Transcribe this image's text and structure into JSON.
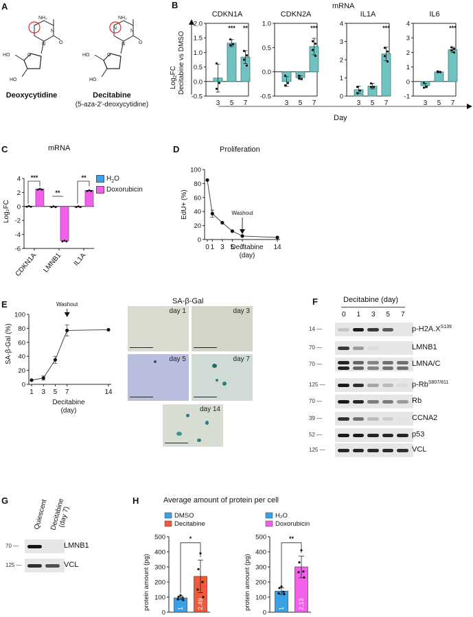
{
  "panels": {
    "A": {
      "letter": "A",
      "molecules": [
        {
          "name": "Deoxycytidine",
          "subtitle": "",
          "ring_atoms": [
            "NH2",
            "N",
            "O",
            "N"
          ],
          "sugar_labels": [
            "HO",
            "O",
            "HO"
          ],
          "highlight": "C5 (circled)"
        },
        {
          "name": "Decitabine",
          "subtitle": "(5-aza-2'-deoxycytidine)",
          "ring_atoms": [
            "NH2",
            "N",
            "O",
            "N",
            "N"
          ],
          "sugar_labels": [
            "HO",
            "O",
            "HO"
          ],
          "highlight": "N5 (circled)"
        }
      ],
      "highlight_color": "#d22b2b"
    },
    "B": {
      "letter": "B",
      "title": "mRNA",
      "ylabel_line1": "Log2FC",
      "ylabel_line2": "Decitabine vs DMSO",
      "xlabel": "Day",
      "bar_color": "#6fc2bf"
    },
    "C": {
      "letter": "C",
      "title": "mRNA",
      "ylabel": "Log2FC",
      "legend": [
        {
          "label": "H2O",
          "color": "#3aa0e8"
        },
        {
          "label": "Doxorubicin",
          "color": "#f060e8"
        }
      ]
    },
    "D": {
      "letter": "D",
      "title": "Proliferation",
      "ylabel": "EdU+ (%)",
      "xlabel_line1": "Decitabine",
      "xlabel_line2": "(day)",
      "annotation": "Washout"
    },
    "E": {
      "letter": "E",
      "ylabel": "SA-β-Gal (%)",
      "xlabel_line1": "Decitabine",
      "xlabel_line2": "(day)",
      "annotation": "Washout",
      "micrographs_title": "SA-β-Gal",
      "micrographs": [
        {
          "label": "day 1",
          "bg": "#d9dccf"
        },
        {
          "label": "day 3",
          "bg": "#d3d6c7"
        },
        {
          "label": "day 5",
          "bg": "#b9bede"
        },
        {
          "label": "day 7",
          "bg": "#cfdbd4"
        },
        {
          "label": "day 14",
          "bg": "#d7ddd2"
        }
      ]
    },
    "F": {
      "letter": "F",
      "header": "Decitabine (day)",
      "lanes": [
        "0",
        "1",
        "3",
        "5",
        "7"
      ],
      "blots": [
        {
          "label": "p-H2A.X",
          "sup": "S139",
          "mw": "14",
          "intensities": [
            0.15,
            0.95,
            0.8,
            0.65,
            0.0
          ]
        },
        {
          "label": "LMNB1",
          "sup": "",
          "mw": "70",
          "intensities": [
            0.8,
            0.35,
            0.05,
            0.0,
            0.0
          ]
        },
        {
          "label": "LMNA/C",
          "sup": "",
          "mw": "70",
          "intensities": [
            0.9,
            0.6,
            0.45,
            0.55,
            0.55
          ]
        },
        {
          "label": "p-Rb",
          "sup": "S807/811",
          "mw": "125",
          "intensities": [
            0.95,
            0.85,
            0.3,
            0.2,
            0.05
          ]
        },
        {
          "label": "Rb",
          "sup": "",
          "mw": "70",
          "intensities": [
            0.95,
            0.9,
            0.5,
            0.5,
            0.35
          ]
        },
        {
          "label": "CCNA2",
          "sup": "",
          "mw": "39",
          "intensities": [
            0.85,
            0.55,
            0.2,
            0.12,
            0.02
          ]
        },
        {
          "label": "p53",
          "sup": "",
          "mw": "52",
          "intensities": [
            0.95,
            0.95,
            0.9,
            0.9,
            0.9
          ]
        },
        {
          "label": "VCL",
          "sup": "",
          "mw": "125",
          "intensities": [
            0.9,
            0.9,
            0.88,
            0.88,
            0.85
          ]
        }
      ]
    },
    "G": {
      "letter": "G",
      "lanes": [
        "Quiescent",
        "Decitabine (day 7)"
      ],
      "blots": [
        {
          "label": "LMNB1",
          "mw": "70",
          "intensities": [
            0.98,
            0.0
          ]
        },
        {
          "label": "VCL",
          "mw": "125",
          "intensities": [
            0.85,
            0.7
          ]
        }
      ]
    },
    "H": {
      "letter": "H",
      "title": "Average amount of protein per cell",
      "ylabel": "protein amount (pg)"
    }
  },
  "chart_data": [
    {
      "id": "B-CDKN1A",
      "type": "bar",
      "title": "CDKN1A",
      "categories": [
        "3",
        "5",
        "7"
      ],
      "values": [
        0.12,
        1.32,
        0.84
      ],
      "errors": [
        0.48,
        0.12,
        0.22
      ],
      "points": [
        [
          0.62,
          -0.05,
          -0.25
        ],
        [
          1.45,
          1.28,
          1.25
        ],
        [
          1.05,
          0.9,
          0.75,
          0.55
        ]
      ],
      "significance": [
        "",
        "***",
        "**"
      ],
      "ylim": [
        -0.5,
        2.0
      ],
      "yticks": [
        "-0.5",
        "0.0",
        "0.5",
        "1.0",
        "1.5",
        "2.0"
      ],
      "xlabel": "Day",
      "ylabel": "Log2FC Decitabine vs DMSO"
    },
    {
      "id": "B-CDKN2A",
      "type": "bar",
      "title": "CDKN2A",
      "categories": [
        "3",
        "5",
        "7"
      ],
      "values": [
        -0.2,
        -0.12,
        0.52
      ],
      "errors": [
        0.1,
        0.04,
        0.17
      ],
      "points": [
        [
          -0.08,
          -0.23,
          -0.28
        ],
        [
          -0.08,
          -0.15,
          -0.13
        ],
        [
          0.63,
          0.58,
          0.45,
          0.33
        ]
      ],
      "significance": [
        "",
        "",
        "***"
      ],
      "ylim": [
        -0.5,
        1.0
      ],
      "yticks": [
        "-0.5",
        "0.0",
        "0.5",
        "1.0"
      ],
      "xlabel": "Day"
    },
    {
      "id": "B-IL1A",
      "type": "bar",
      "title": "IL1A",
      "categories": [
        "3",
        "5",
        "7"
      ],
      "values": [
        0.35,
        0.55,
        2.32
      ],
      "errors": [
        0.2,
        0.15,
        0.37
      ],
      "points": [
        [
          0.5,
          0.3,
          0.15
        ],
        [
          0.7,
          0.5,
          0.5
        ],
        [
          2.65,
          2.45,
          2.2,
          1.9
        ]
      ],
      "significance": [
        "",
        "",
        "***"
      ],
      "ylim": [
        0,
        4
      ],
      "yticks": [
        "0",
        "1",
        "2",
        "3",
        "4"
      ],
      "xlabel": "Day"
    },
    {
      "id": "B-IL6",
      "type": "bar",
      "title": "IL6",
      "categories": [
        "3",
        "5",
        "7"
      ],
      "values": [
        -0.28,
        0.66,
        2.18
      ],
      "errors": [
        0.15,
        0.05,
        0.18
      ],
      "points": [
        [
          -0.1,
          -0.35,
          -0.42
        ],
        [
          0.7,
          0.65,
          0.65
        ],
        [
          2.35,
          2.25,
          2.15,
          2.0
        ]
      ],
      "significance": [
        "",
        "",
        "***"
      ],
      "ylim": [
        -1,
        4
      ],
      "yticks": [
        "-1",
        "0",
        "1",
        "2",
        "3",
        "4"
      ],
      "xlabel": "Day"
    },
    {
      "id": "C",
      "type": "bar",
      "title": "mRNA",
      "categories": [
        "CDKN1A",
        "LMNB1",
        "IL1A"
      ],
      "series": [
        {
          "name": "H2O",
          "values": [
            0.05,
            0.0,
            0.0
          ],
          "color": "#3aa0e8"
        },
        {
          "name": "Doxorubicin",
          "values": [
            2.5,
            -4.9,
            2.3
          ],
          "color": "#f060e8"
        }
      ],
      "significance": [
        "***",
        "**",
        "**"
      ],
      "ylim": [
        -6,
        4
      ],
      "yticks": [
        "-6",
        "-4",
        "-2",
        "0",
        "2",
        "4"
      ],
      "ylabel": "Log2FC"
    },
    {
      "id": "D",
      "type": "line",
      "title": "Proliferation",
      "x": [
        0,
        1,
        3,
        5,
        7,
        14
      ],
      "y": [
        85,
        37,
        24,
        12,
        5,
        3
      ],
      "errors": [
        0,
        5,
        1,
        1,
        1,
        1
      ],
      "xticks": [
        "0",
        "1",
        "3",
        "5",
        "7",
        "14"
      ],
      "yticks": [
        "0",
        "20",
        "40",
        "60",
        "80",
        "100"
      ],
      "ylim": [
        0,
        100
      ],
      "xlabel": "Decitabine (day)",
      "ylabel": "EdU+ (%)",
      "annotations": [
        {
          "text": "Washout",
          "x": 7
        }
      ]
    },
    {
      "id": "E",
      "type": "line",
      "title": "",
      "x": [
        1,
        3,
        5,
        7,
        14
      ],
      "y": [
        6,
        9,
        35,
        77,
        78
      ],
      "errors": [
        1,
        3,
        5,
        8,
        1
      ],
      "xticks": [
        "1",
        "3",
        "5",
        "7",
        "14"
      ],
      "yticks": [
        "0",
        "20",
        "40",
        "60",
        "80",
        "100"
      ],
      "ylim": [
        0,
        100
      ],
      "xlabel": "Decitabine (day)",
      "ylabel": "SA-β-Gal (%)",
      "annotations": [
        {
          "text": "Washout",
          "x": 7
        }
      ]
    },
    {
      "id": "H-left",
      "type": "bar",
      "categories": [
        "DMSO",
        "Decitabine"
      ],
      "values": [
        95,
        237
      ],
      "colors": [
        "#3aa0e8",
        "#f05a3a"
      ],
      "errors": [
        12,
        108
      ],
      "points": [
        [
          112,
          100,
          95,
          85,
          80
        ],
        [
          390,
          285,
          200,
          150,
          100
        ]
      ],
      "bar_labels": [
        "1",
        "2.49"
      ],
      "significance": "*",
      "ylim": [
        0,
        500
      ],
      "yticks": [
        "0",
        "100",
        "200",
        "300",
        "400",
        "500"
      ],
      "ylabel": "protein amount (pg)",
      "legend": [
        {
          "label": "DMSO",
          "color": "#3aa0e8"
        },
        {
          "label": "Decitabine",
          "color": "#f05a3a"
        }
      ]
    },
    {
      "id": "H-right",
      "type": "bar",
      "categories": [
        "H2O",
        "Doxorubicin"
      ],
      "values": [
        140,
        300
      ],
      "colors": [
        "#3aa0e8",
        "#f060e8"
      ],
      "errors": [
        22,
        72
      ],
      "points": [
        [
          170,
          160,
          135,
          125,
          120
        ],
        [
          410,
          330,
          270,
          265,
          230
        ]
      ],
      "bar_labels": [
        "1",
        "2.13"
      ],
      "significance": "**",
      "ylim": [
        0,
        500
      ],
      "yticks": [
        "0",
        "100",
        "200",
        "300",
        "400",
        "500"
      ],
      "ylabel": "protein amount (pg)",
      "legend": [
        {
          "label": "H2O",
          "color": "#3aa0e8"
        },
        {
          "label": "Doxorubicin",
          "color": "#f060e8"
        }
      ]
    }
  ]
}
